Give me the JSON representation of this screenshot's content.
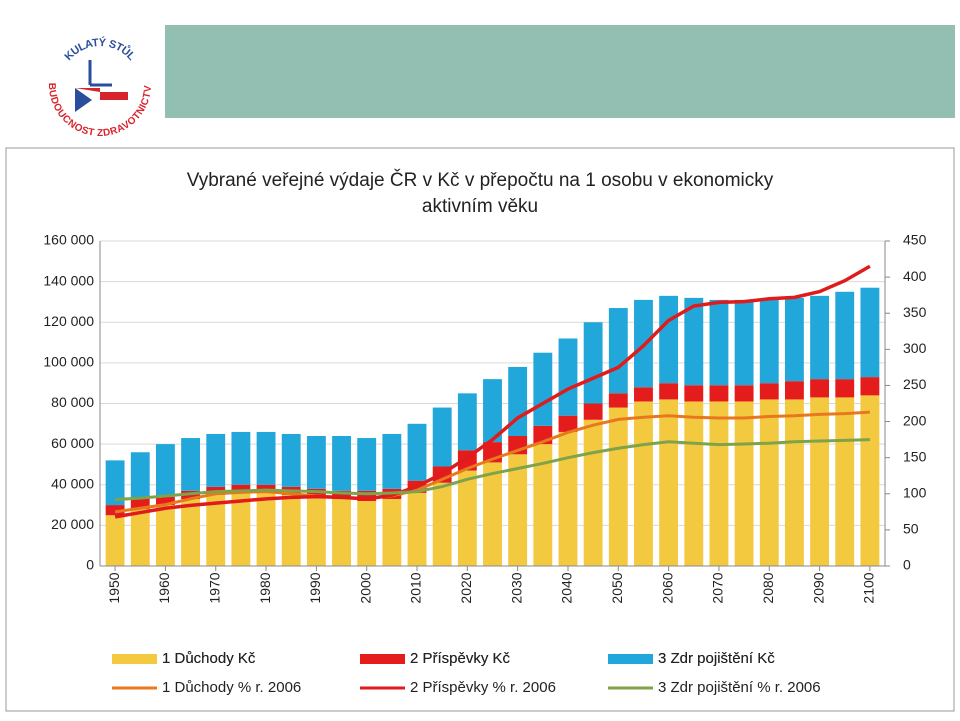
{
  "logo": {
    "top_text": "KULATÝ STŮL",
    "bottom_text": "BUDOUCNOST ZDRAVOTNICTVÍ"
  },
  "chart_data": {
    "type": "combo",
    "title": [
      "Vybrané veřejné výdaje ČR v Kč v přepočtu na 1 osobu v ekonomicky",
      "aktivním věku"
    ],
    "x": [
      1950,
      1955,
      1960,
      1965,
      1970,
      1975,
      1980,
      1985,
      1990,
      1995,
      2000,
      2005,
      2010,
      2015,
      2020,
      2025,
      2030,
      2035,
      2040,
      2045,
      2050,
      2055,
      2060,
      2065,
      2070,
      2075,
      2080,
      2085,
      2090,
      2095,
      2100
    ],
    "xlim": [
      1947,
      2103
    ],
    "xticks": [
      1950,
      1960,
      1970,
      1980,
      1990,
      2000,
      2010,
      2020,
      2030,
      2040,
      2050,
      2060,
      2070,
      2080,
      2090,
      2100
    ],
    "ylim": [
      0,
      160000
    ],
    "yticks": [
      {
        "value": 0,
        "label": "0"
      },
      {
        "value": 20000,
        "label": "20 000"
      },
      {
        "value": 40000,
        "label": "40 000"
      },
      {
        "value": 60000,
        "label": "60 000"
      },
      {
        "value": 80000,
        "label": "80 000"
      },
      {
        "value": 100000,
        "label": "100 000"
      },
      {
        "value": 120000,
        "label": "120 000"
      },
      {
        "value": 140000,
        "label": "140 000"
      },
      {
        "value": 160000,
        "label": "160 000"
      }
    ],
    "y2lim": [
      0,
      450
    ],
    "y2ticks": [
      0,
      50,
      100,
      150,
      200,
      250,
      300,
      350,
      400,
      450
    ],
    "grid": true,
    "series": [
      {
        "name": "1 Důchody Kč",
        "type": "bar",
        "color": "#f3c940",
        "values": [
          25000,
          28000,
          30000,
          33000,
          35000,
          36000,
          36000,
          35000,
          34000,
          33000,
          32000,
          33000,
          36000,
          41000,
          47000,
          51000,
          55000,
          60000,
          66000,
          72000,
          78000,
          81000,
          82000,
          81000,
          81000,
          81000,
          82000,
          82000,
          83000,
          83000,
          84000
        ]
      },
      {
        "name": "2 Příspěvky Kč",
        "type": "bar",
        "color": "#e41c1c",
        "values": [
          5000,
          5000,
          4000,
          4000,
          4000,
          4000,
          4000,
          4000,
          4000,
          4000,
          5000,
          5000,
          6000,
          8000,
          10000,
          10000,
          9000,
          9000,
          8000,
          8000,
          7000,
          7000,
          8000,
          8000,
          8000,
          8000,
          8000,
          9000,
          9000,
          9000,
          9000
        ]
      },
      {
        "name": "3 Zdr pojištění Kč",
        "type": "bar",
        "color": "#22a7da",
        "values": [
          22000,
          23000,
          26000,
          26000,
          26000,
          26000,
          26000,
          26000,
          26000,
          27000,
          26000,
          27000,
          28000,
          29000,
          28000,
          31000,
          34000,
          36000,
          38000,
          40000,
          42000,
          43000,
          43000,
          43000,
          42000,
          42000,
          41000,
          41000,
          41000,
          43000,
          44000
        ]
      },
      {
        "name": "1 Důchody % r. 2006",
        "type": "line",
        "axis": "y2",
        "color": "#e8781e",
        "values": [
          75,
          80,
          85,
          93,
          100,
          102,
          103,
          100,
          97,
          95,
          93,
          97,
          105,
          120,
          135,
          148,
          160,
          172,
          185,
          195,
          203,
          206,
          208,
          206,
          205,
          205,
          207,
          208,
          210,
          211,
          213
        ]
      },
      {
        "name": "2 Příspěvky % r. 2006",
        "type": "line",
        "axis": "y2",
        "color": "#e01b1b",
        "values": [
          68,
          74,
          80,
          84,
          87,
          90,
          93,
          95,
          96,
          95,
          93,
          98,
          110,
          128,
          150,
          175,
          205,
          225,
          245,
          260,
          275,
          305,
          340,
          360,
          365,
          366,
          370,
          372,
          380,
          395,
          415
        ]
      },
      {
        "name": "3 Zdr pojištění % r. 2006",
        "type": "line",
        "axis": "y2",
        "color": "#7ea34a",
        "values": [
          92,
          94,
          97,
          100,
          103,
          104,
          105,
          104,
          103,
          101,
          100,
          101,
          103,
          110,
          120,
          128,
          135,
          142,
          150,
          157,
          163,
          168,
          172,
          170,
          168,
          169,
          170,
          172,
          173,
          174,
          175
        ]
      }
    ]
  }
}
